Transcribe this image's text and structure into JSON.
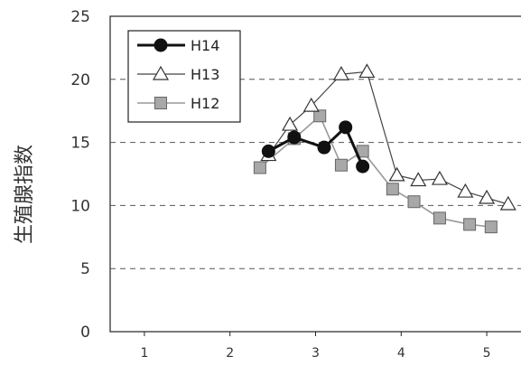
{
  "chart_data": {
    "type": "line",
    "ylabel": "生殖腺指数",
    "ylim": [
      0,
      25
    ],
    "yticks": [
      "0",
      "5",
      "10",
      "15",
      "20",
      "25"
    ],
    "xlim": [
      0.6,
      5.4
    ],
    "xticks": [
      "1",
      "2",
      "3",
      "4",
      "5"
    ],
    "legend_position": "top-left",
    "grid": "horizontal dashed",
    "series": [
      {
        "name": "H14",
        "marker": "filled-circle",
        "color": "#111111",
        "points": [
          [
            2.45,
            14.3
          ],
          [
            2.75,
            15.4
          ],
          [
            3.1,
            14.6
          ],
          [
            3.35,
            16.2
          ],
          [
            3.55,
            13.1
          ]
        ]
      },
      {
        "name": "H13",
        "marker": "open-triangle",
        "color": "#444444",
        "points": [
          [
            2.45,
            14.0
          ],
          [
            2.7,
            16.4
          ],
          [
            2.95,
            17.9
          ],
          [
            3.3,
            20.4
          ],
          [
            3.6,
            20.6
          ],
          [
            3.95,
            12.4
          ],
          [
            4.2,
            12.0
          ],
          [
            4.45,
            12.1
          ],
          [
            4.75,
            11.1
          ],
          [
            5.0,
            10.6
          ],
          [
            5.25,
            10.1
          ]
        ]
      },
      {
        "name": "H12",
        "marker": "square",
        "color": "#999999",
        "points": [
          [
            2.35,
            13.0
          ],
          [
            2.75,
            15.3
          ],
          [
            3.05,
            17.1
          ],
          [
            3.3,
            13.2
          ],
          [
            3.55,
            14.3
          ],
          [
            3.9,
            11.3
          ],
          [
            4.15,
            10.3
          ],
          [
            4.45,
            9.0
          ],
          [
            4.8,
            8.5
          ],
          [
            5.05,
            8.3
          ]
        ]
      }
    ]
  }
}
